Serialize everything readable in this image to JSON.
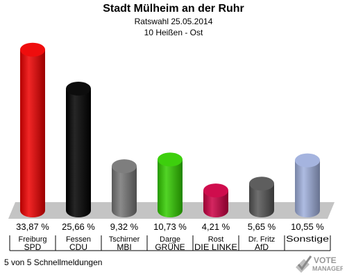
{
  "chart_data": {
    "type": "bar",
    "title": "Stadt Mülheim an der Ruhr",
    "subtitle_lines": [
      "Ratswahl 25.05.2014",
      "10 Heißen - Ost"
    ],
    "categories": [
      {
        "candidate": "Freiburg",
        "party": "SPD"
      },
      {
        "candidate": "Fessen",
        "party": "CDU"
      },
      {
        "candidate": "Tschirner",
        "party": "MBI"
      },
      {
        "candidate": "Darge",
        "party": "GRÜNE"
      },
      {
        "candidate": "Rost",
        "party": "DIE LINKE"
      },
      {
        "candidate": "Dr. Fritz",
        "party": "AfD"
      },
      {
        "candidate": "",
        "party": "Sonstige"
      }
    ],
    "values": [
      33.87,
      25.66,
      9.32,
      10.73,
      4.21,
      5.65,
      10.55
    ],
    "value_labels": [
      "33,87 %",
      "25,66 %",
      "9,32 %",
      "10,73 %",
      "4,21 %",
      "5,65 %",
      "10,55 %"
    ],
    "colors": [
      "#ee0000",
      "#000000",
      "#777777",
      "#33cc00",
      "#cc0044",
      "#555555",
      "#a0b0dd"
    ],
    "ylim": [
      0,
      35
    ]
  },
  "footer": "5 von 5 Schnellmeldungen",
  "logo": {
    "line1": "VOTE",
    "line2": "MANAGER"
  }
}
